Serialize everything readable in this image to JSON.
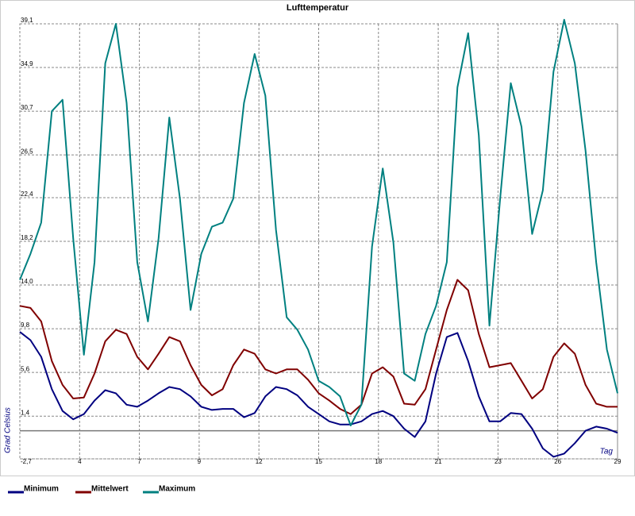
{
  "chart_data": {
    "type": "line",
    "title": "Lufttemperatur",
    "y_label": "Grad Celsius",
    "x_label": "Tag",
    "x": [
      1,
      1.5,
      2,
      2.5,
      3,
      3.5,
      4,
      4.5,
      5,
      5.5,
      6,
      6.5,
      7,
      7.5,
      8,
      8.5,
      9,
      9.5,
      10,
      10.5,
      11,
      11.5,
      12,
      12.5,
      13,
      13.5,
      14,
      14.5,
      15,
      15.5,
      16,
      16.5,
      17,
      17.5,
      18,
      18.5,
      19,
      19.5,
      20,
      20.5,
      21,
      21.5,
      22,
      22.5,
      23,
      23.5,
      24,
      24.5,
      25,
      25.5,
      26,
      26.5,
      27,
      27.5,
      28,
      28.5,
      29
    ],
    "series": [
      {
        "name": "Minimum",
        "color": "#000080",
        "values": [
          9.5,
          8.7,
          7.1,
          4.0,
          1.9,
          1.1,
          1.6,
          2.9,
          3.9,
          3.6,
          2.5,
          2.3,
          2.9,
          3.6,
          4.2,
          4.0,
          3.3,
          2.3,
          2.0,
          2.1,
          2.1,
          1.3,
          1.7,
          3.3,
          4.2,
          4.0,
          3.4,
          2.3,
          1.6,
          0.9,
          0.6,
          0.6,
          0.9,
          1.6,
          1.9,
          1.4,
          0.2,
          -0.6,
          0.9,
          5.5,
          9.0,
          9.4,
          6.7,
          3.3,
          0.9,
          0.9,
          1.7,
          1.6,
          0.2,
          -1.7,
          -2.5,
          -2.2,
          -1.2,
          0.0,
          0.4,
          0.2,
          -0.2
        ]
      },
      {
        "name": "Mittelwert",
        "color": "#800000",
        "values": [
          12.0,
          11.8,
          10.5,
          6.7,
          4.4,
          3.1,
          3.2,
          5.5,
          8.6,
          9.7,
          9.3,
          7.1,
          5.9,
          7.4,
          9.0,
          8.6,
          6.3,
          4.4,
          3.4,
          4.0,
          6.3,
          7.8,
          7.4,
          5.9,
          5.5,
          5.9,
          5.9,
          4.9,
          3.6,
          2.9,
          2.1,
          1.6,
          2.5,
          5.5,
          6.1,
          5.2,
          2.6,
          2.5,
          4.0,
          7.8,
          11.6,
          14.5,
          13.5,
          9.3,
          6.1,
          6.3,
          6.5,
          4.8,
          3.1,
          4.0,
          7.1,
          8.4,
          7.4,
          4.4,
          2.6,
          2.3,
          2.3
        ]
      },
      {
        "name": "Maximum",
        "color": "#008080",
        "values": [
          14.5,
          17.0,
          20.0,
          30.7,
          31.8,
          18.5,
          7.3,
          16.2,
          35.3,
          39.1,
          31.5,
          16.2,
          10.5,
          18.5,
          30.1,
          22.3,
          11.6,
          17.0,
          19.6,
          20.0,
          22.3,
          31.5,
          36.2,
          32.2,
          19.3,
          10.9,
          9.7,
          7.8,
          4.8,
          4.2,
          3.3,
          0.5,
          2.5,
          17.7,
          25.2,
          18.1,
          5.5,
          4.8,
          9.3,
          12.0,
          16.2,
          33.0,
          38.2,
          28.4,
          10.1,
          22.3,
          33.4,
          29.2,
          18.9,
          23.1,
          34.5,
          39.5,
          35.3,
          26.9,
          16.2,
          7.8,
          3.6
        ]
      }
    ],
    "xlim": [
      1,
      29
    ],
    "xticks": [
      {
        "value": 3.8,
        "label": "4"
      },
      {
        "value": 6.6,
        "label": "7"
      },
      {
        "value": 9.4,
        "label": "9"
      },
      {
        "value": 12.2,
        "label": "12"
      },
      {
        "value": 15,
        "label": "15"
      },
      {
        "value": 17.8,
        "label": "18"
      },
      {
        "value": 20.6,
        "label": "21"
      },
      {
        "value": 23.4,
        "label": "23"
      },
      {
        "value": 26.2,
        "label": "26"
      },
      {
        "value": 29,
        "label": "29"
      }
    ],
    "ylim": [
      -2.7,
      39.1
    ],
    "yticks": [
      {
        "value": -2.7,
        "label": "-2,7"
      },
      {
        "value": 1.4,
        "label": "1,4"
      },
      {
        "value": 5.6,
        "label": "5,6"
      },
      {
        "value": 9.8,
        "label": "9,8"
      },
      {
        "value": 14.0,
        "label": "14,0"
      },
      {
        "value": 18.2,
        "label": "18,2"
      },
      {
        "value": 22.4,
        "label": "22,4"
      },
      {
        "value": 26.5,
        "label": "26,5"
      },
      {
        "value": 30.7,
        "label": "30,7"
      },
      {
        "value": 34.9,
        "label": "34,9"
      },
      {
        "value": 39.1,
        "label": "39,1"
      }
    ],
    "grid": true,
    "zero_line": true,
    "legend": "bottom"
  }
}
